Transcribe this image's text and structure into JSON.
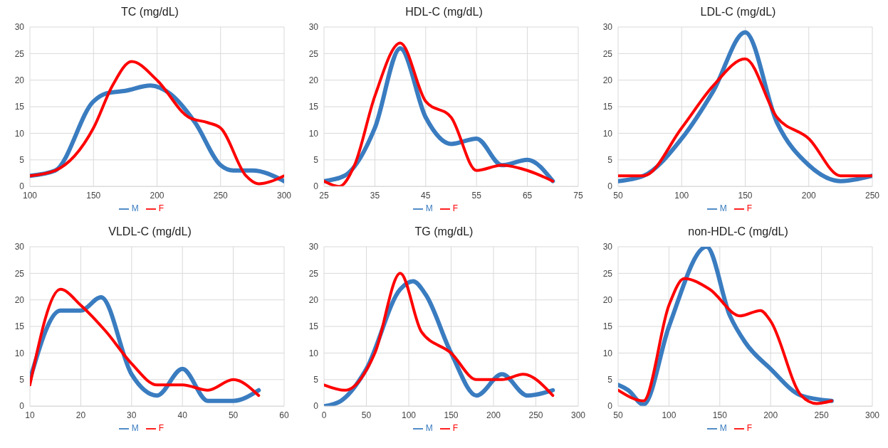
{
  "chart_data": [
    {
      "type": "line",
      "title": "TC (mg/dL)",
      "xlim": [
        100,
        300
      ],
      "xticks": [
        100,
        150,
        200,
        250,
        300
      ],
      "ylim": [
        0,
        30
      ],
      "yticks": [
        0,
        5,
        10,
        15,
        20,
        25,
        30
      ],
      "grid": true,
      "legend": "bottom",
      "series": [
        {
          "name": "M",
          "color": "#3a7cc0",
          "x": [
            100,
            120,
            150,
            160,
            175,
            195,
            210,
            230,
            250,
            260,
            275,
            300
          ],
          "values": [
            2,
            3,
            16,
            17.5,
            18,
            19,
            17.5,
            12,
            4,
            3,
            3,
            1
          ]
        },
        {
          "name": "F",
          "color": "#ff0000",
          "x": [
            100,
            120,
            150,
            165,
            180,
            200,
            225,
            240,
            250,
            270,
            280,
            300
          ],
          "values": [
            2,
            3,
            11,
            19,
            23.5,
            20,
            13,
            12,
            11,
            2,
            0.5,
            2
          ]
        }
      ]
    },
    {
      "type": "line",
      "title": "HDL-C (mg/dL)",
      "xlim": [
        25,
        75
      ],
      "xticks": [
        25,
        35,
        45,
        55,
        65,
        75
      ],
      "ylim": [
        0,
        30
      ],
      "yticks": [
        0,
        5,
        10,
        15,
        20,
        25,
        30
      ],
      "grid": true,
      "legend": "bottom",
      "series": [
        {
          "name": "M",
          "color": "#3a7cc0",
          "x": [
            25,
            29,
            35,
            40,
            45,
            50,
            55,
            60,
            65,
            70
          ],
          "values": [
            1,
            2,
            11,
            26,
            13,
            8,
            9,
            4,
            5,
            1
          ]
        },
        {
          "name": "F",
          "color": "#ff0000",
          "x": [
            25,
            28,
            31,
            35,
            40,
            45,
            50,
            55,
            60,
            65,
            70
          ],
          "values": [
            1,
            0,
            4,
            17,
            27,
            16,
            13,
            3,
            4,
            3,
            1
          ]
        }
      ]
    },
    {
      "type": "line",
      "title": "LDL-C (mg/dL)",
      "xlim": [
        50,
        250
      ],
      "xticks": [
        50,
        100,
        150,
        200,
        250
      ],
      "ylim": [
        0,
        30
      ],
      "yticks": [
        0,
        5,
        10,
        15,
        20,
        25,
        30
      ],
      "grid": true,
      "legend": "bottom",
      "series": [
        {
          "name": "M",
          "color": "#3a7cc0",
          "x": [
            50,
            70,
            100,
            125,
            150,
            175,
            200,
            225,
            250
          ],
          "values": [
            1,
            2,
            9,
            18,
            29,
            12,
            4,
            1,
            2
          ]
        },
        {
          "name": "F",
          "color": "#ff0000",
          "x": [
            50,
            70,
            100,
            125,
            150,
            175,
            200,
            225,
            250
          ],
          "values": [
            2,
            2,
            11,
            19,
            24,
            13,
            9,
            2,
            2
          ]
        }
      ]
    },
    {
      "type": "line",
      "title": "VLDL-C (mg/dL)",
      "xlim": [
        10,
        60
      ],
      "xticks": [
        10,
        20,
        30,
        40,
        50,
        60
      ],
      "ylim": [
        0,
        30
      ],
      "yticks": [
        0,
        5,
        10,
        15,
        20,
        25,
        30
      ],
      "grid": true,
      "legend": "bottom",
      "series": [
        {
          "name": "M",
          "color": "#3a7cc0",
          "x": [
            10,
            16,
            20,
            24,
            30,
            35,
            40,
            45,
            50,
            55
          ],
          "values": [
            5,
            18,
            18,
            20.5,
            6,
            2,
            7,
            1,
            1,
            3
          ]
        },
        {
          "name": "F",
          "color": "#ff0000",
          "x": [
            10,
            16,
            20,
            25,
            30,
            35,
            40,
            45,
            50,
            55
          ],
          "values": [
            4,
            22,
            19,
            14,
            8,
            4,
            4,
            3,
            5,
            2
          ]
        }
      ]
    },
    {
      "type": "line",
      "title": "TG (mg/dL)",
      "xlim": [
        0,
        300
      ],
      "xticks": [
        0,
        50,
        100,
        150,
        200,
        250,
        300
      ],
      "ylim": [
        0,
        30
      ],
      "yticks": [
        0,
        5,
        10,
        15,
        20,
        25,
        30
      ],
      "grid": true,
      "legend": "bottom",
      "series": [
        {
          "name": "M",
          "color": "#3a7cc0",
          "x": [
            0,
            20,
            50,
            90,
            105,
            120,
            150,
            180,
            210,
            240,
            270
          ],
          "values": [
            0,
            1,
            7,
            22,
            23.5,
            21,
            10,
            2,
            6,
            2,
            3
          ]
        },
        {
          "name": "F",
          "color": "#ff0000",
          "x": [
            0,
            25,
            60,
            90,
            115,
            150,
            180,
            210,
            235,
            270
          ],
          "values": [
            4,
            3,
            10,
            25,
            14,
            10,
            5,
            5,
            6,
            2
          ]
        }
      ]
    },
    {
      "type": "line",
      "title": "non-HDL-C (mg/dL)",
      "xlim": [
        50,
        300
      ],
      "xticks": [
        50,
        100,
        150,
        200,
        250,
        300
      ],
      "ylim": [
        0,
        30
      ],
      "yticks": [
        0,
        5,
        10,
        15,
        20,
        25,
        30
      ],
      "grid": true,
      "legend": "bottom",
      "series": [
        {
          "name": "M",
          "color": "#3a7cc0",
          "x": [
            50,
            60,
            75,
            100,
            137,
            160,
            175,
            200,
            230,
            260
          ],
          "values": [
            4,
            3,
            0.3,
            15,
            30,
            17,
            12,
            7,
            2,
            1
          ]
        },
        {
          "name": "F",
          "color": "#ff0000",
          "x": [
            50,
            75,
            100,
            115,
            140,
            170,
            190,
            200,
            230,
            245,
            260
          ],
          "values": [
            3,
            1,
            19,
            24,
            22,
            17,
            18,
            16,
            2,
            0.5,
            1
          ]
        }
      ]
    }
  ]
}
